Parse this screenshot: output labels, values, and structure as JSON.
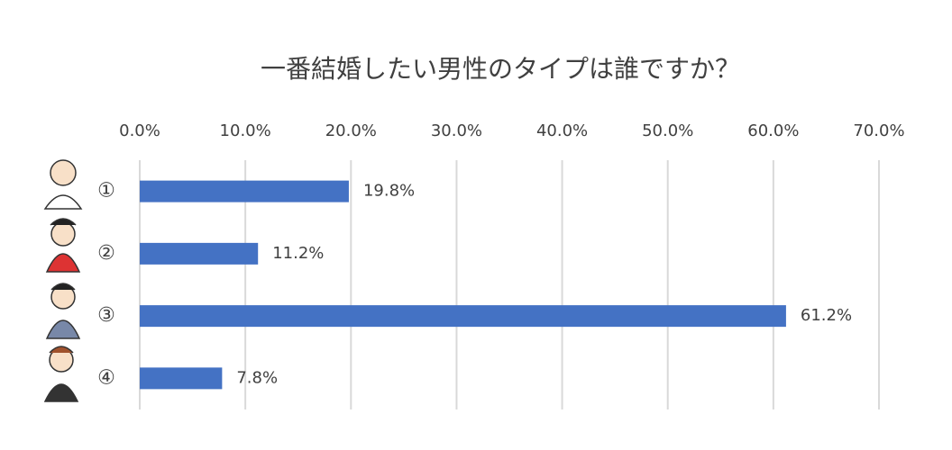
{
  "chart_data": {
    "type": "bar",
    "orientation": "horizontal",
    "title": "一番結婚したい男性のタイプは誰ですか？",
    "categories": [
      "①",
      "②",
      "③",
      "④"
    ],
    "values": [
      19.8,
      11.2,
      61.2,
      7.8
    ],
    "value_labels": [
      "19.8%",
      "11.2%",
      "61.2%",
      "7.8%"
    ],
    "color": "#4472c4",
    "xlim": [
      0,
      70
    ],
    "xticks": [
      {
        "value": 0,
        "label": "0.0%"
      },
      {
        "value": 10,
        "label": "10.0%"
      },
      {
        "value": 20,
        "label": "20.0%"
      },
      {
        "value": 30,
        "label": "30.0%"
      },
      {
        "value": 40,
        "label": "40.0%"
      },
      {
        "value": 50,
        "label": "50.0%"
      },
      {
        "value": 60,
        "label": "60.0%"
      },
      {
        "value": 70,
        "label": "70.0%"
      }
    ],
    "grid": true
  }
}
